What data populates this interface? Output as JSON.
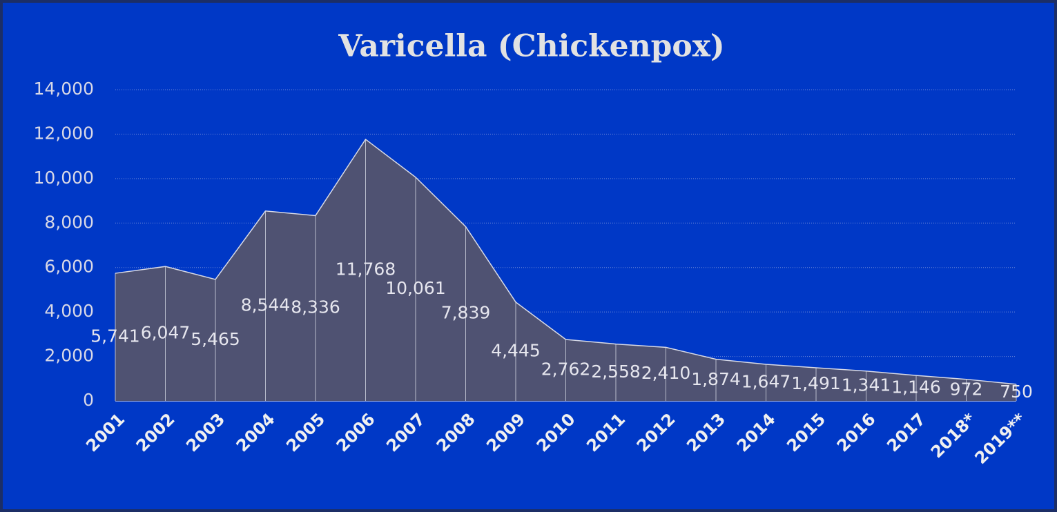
{
  "chart_data": {
    "type": "area",
    "title": "Varicella (Chickenpox)",
    "categories": [
      "2001",
      "2002",
      "2003",
      "2004",
      "2005",
      "2006",
      "2007",
      "2008",
      "2009",
      "2010",
      "2011",
      "2012",
      "2013",
      "2014",
      "2015",
      "2016",
      "2017",
      "2018*",
      "2019**"
    ],
    "values": [
      5741,
      6047,
      5465,
      8544,
      8336,
      11768,
      10061,
      7839,
      4445,
      2762,
      2558,
      2410,
      1874,
      1647,
      1491,
      1341,
      1146,
      972,
      750
    ],
    "value_labels": [
      "5,741",
      "6,047",
      "5,465",
      "8,544",
      "8,336",
      "11,768",
      "10,061",
      "7,839",
      "4,445",
      "2,762",
      "2,558",
      "2,410",
      "1,874",
      "1,647",
      "1,491",
      "1,341",
      "1,146",
      "972",
      "750"
    ],
    "color": "#4f5272",
    "ylim": [
      0,
      14000
    ],
    "yticks": [
      0,
      {
        "value": 2000,
        "label": "2,000"
      },
      {
        "value": 4000,
        "label": "4,000"
      },
      {
        "value": 6000,
        "label": "6,000"
      },
      {
        "value": 8000,
        "label": "8,000"
      },
      {
        "value": 10000,
        "label": "10,000"
      },
      {
        "value": 12000,
        "label": "12,000"
      },
      {
        "value": 14000,
        "label": "14,000"
      }
    ],
    "grid": true
  }
}
